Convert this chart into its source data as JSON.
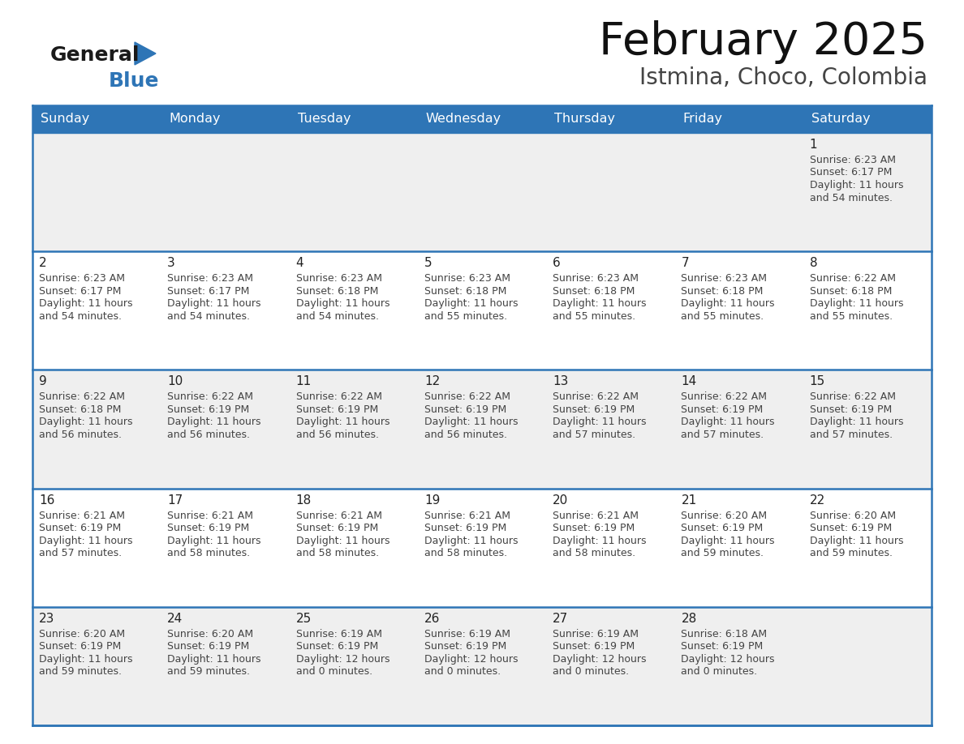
{
  "title": "February 2025",
  "subtitle": "Istmina, Choco, Colombia",
  "header_bg": "#2E75B6",
  "header_text_color": "#FFFFFF",
  "cell_bg_odd": "#EFEFEF",
  "cell_bg_even": "#FFFFFF",
  "border_color": "#2E75B6",
  "text_color": "#444444",
  "day_number_color": "#222222",
  "day_headers": [
    "Sunday",
    "Monday",
    "Tuesday",
    "Wednesday",
    "Thursday",
    "Friday",
    "Saturday"
  ],
  "calendar_data": [
    [
      null,
      null,
      null,
      null,
      null,
      null,
      {
        "day": 1,
        "sunrise": "6:23 AM",
        "sunset": "6:17 PM",
        "daylight_line1": "11 hours",
        "daylight_line2": "and 54 minutes."
      }
    ],
    [
      {
        "day": 2,
        "sunrise": "6:23 AM",
        "sunset": "6:17 PM",
        "daylight_line1": "11 hours",
        "daylight_line2": "and 54 minutes."
      },
      {
        "day": 3,
        "sunrise": "6:23 AM",
        "sunset": "6:17 PM",
        "daylight_line1": "11 hours",
        "daylight_line2": "and 54 minutes."
      },
      {
        "day": 4,
        "sunrise": "6:23 AM",
        "sunset": "6:18 PM",
        "daylight_line1": "11 hours",
        "daylight_line2": "and 54 minutes."
      },
      {
        "day": 5,
        "sunrise": "6:23 AM",
        "sunset": "6:18 PM",
        "daylight_line1": "11 hours",
        "daylight_line2": "and 55 minutes."
      },
      {
        "day": 6,
        "sunrise": "6:23 AM",
        "sunset": "6:18 PM",
        "daylight_line1": "11 hours",
        "daylight_line2": "and 55 minutes."
      },
      {
        "day": 7,
        "sunrise": "6:23 AM",
        "sunset": "6:18 PM",
        "daylight_line1": "11 hours",
        "daylight_line2": "and 55 minutes."
      },
      {
        "day": 8,
        "sunrise": "6:22 AM",
        "sunset": "6:18 PM",
        "daylight_line1": "11 hours",
        "daylight_line2": "and 55 minutes."
      }
    ],
    [
      {
        "day": 9,
        "sunrise": "6:22 AM",
        "sunset": "6:18 PM",
        "daylight_line1": "11 hours",
        "daylight_line2": "and 56 minutes."
      },
      {
        "day": 10,
        "sunrise": "6:22 AM",
        "sunset": "6:19 PM",
        "daylight_line1": "11 hours",
        "daylight_line2": "and 56 minutes."
      },
      {
        "day": 11,
        "sunrise": "6:22 AM",
        "sunset": "6:19 PM",
        "daylight_line1": "11 hours",
        "daylight_line2": "and 56 minutes."
      },
      {
        "day": 12,
        "sunrise": "6:22 AM",
        "sunset": "6:19 PM",
        "daylight_line1": "11 hours",
        "daylight_line2": "and 56 minutes."
      },
      {
        "day": 13,
        "sunrise": "6:22 AM",
        "sunset": "6:19 PM",
        "daylight_line1": "11 hours",
        "daylight_line2": "and 57 minutes."
      },
      {
        "day": 14,
        "sunrise": "6:22 AM",
        "sunset": "6:19 PM",
        "daylight_line1": "11 hours",
        "daylight_line2": "and 57 minutes."
      },
      {
        "day": 15,
        "sunrise": "6:22 AM",
        "sunset": "6:19 PM",
        "daylight_line1": "11 hours",
        "daylight_line2": "and 57 minutes."
      }
    ],
    [
      {
        "day": 16,
        "sunrise": "6:21 AM",
        "sunset": "6:19 PM",
        "daylight_line1": "11 hours",
        "daylight_line2": "and 57 minutes."
      },
      {
        "day": 17,
        "sunrise": "6:21 AM",
        "sunset": "6:19 PM",
        "daylight_line1": "11 hours",
        "daylight_line2": "and 58 minutes."
      },
      {
        "day": 18,
        "sunrise": "6:21 AM",
        "sunset": "6:19 PM",
        "daylight_line1": "11 hours",
        "daylight_line2": "and 58 minutes."
      },
      {
        "day": 19,
        "sunrise": "6:21 AM",
        "sunset": "6:19 PM",
        "daylight_line1": "11 hours",
        "daylight_line2": "and 58 minutes."
      },
      {
        "day": 20,
        "sunrise": "6:21 AM",
        "sunset": "6:19 PM",
        "daylight_line1": "11 hours",
        "daylight_line2": "and 58 minutes."
      },
      {
        "day": 21,
        "sunrise": "6:20 AM",
        "sunset": "6:19 PM",
        "daylight_line1": "11 hours",
        "daylight_line2": "and 59 minutes."
      },
      {
        "day": 22,
        "sunrise": "6:20 AM",
        "sunset": "6:19 PM",
        "daylight_line1": "11 hours",
        "daylight_line2": "and 59 minutes."
      }
    ],
    [
      {
        "day": 23,
        "sunrise": "6:20 AM",
        "sunset": "6:19 PM",
        "daylight_line1": "11 hours",
        "daylight_line2": "and 59 minutes."
      },
      {
        "day": 24,
        "sunrise": "6:20 AM",
        "sunset": "6:19 PM",
        "daylight_line1": "11 hours",
        "daylight_line2": "and 59 minutes."
      },
      {
        "day": 25,
        "sunrise": "6:19 AM",
        "sunset": "6:19 PM",
        "daylight_line1": "12 hours",
        "daylight_line2": "and 0 minutes."
      },
      {
        "day": 26,
        "sunrise": "6:19 AM",
        "sunset": "6:19 PM",
        "daylight_line1": "12 hours",
        "daylight_line2": "and 0 minutes."
      },
      {
        "day": 27,
        "sunrise": "6:19 AM",
        "sunset": "6:19 PM",
        "daylight_line1": "12 hours",
        "daylight_line2": "and 0 minutes."
      },
      {
        "day": 28,
        "sunrise": "6:18 AM",
        "sunset": "6:19 PM",
        "daylight_line1": "12 hours",
        "daylight_line2": "and 0 minutes."
      },
      null
    ]
  ]
}
